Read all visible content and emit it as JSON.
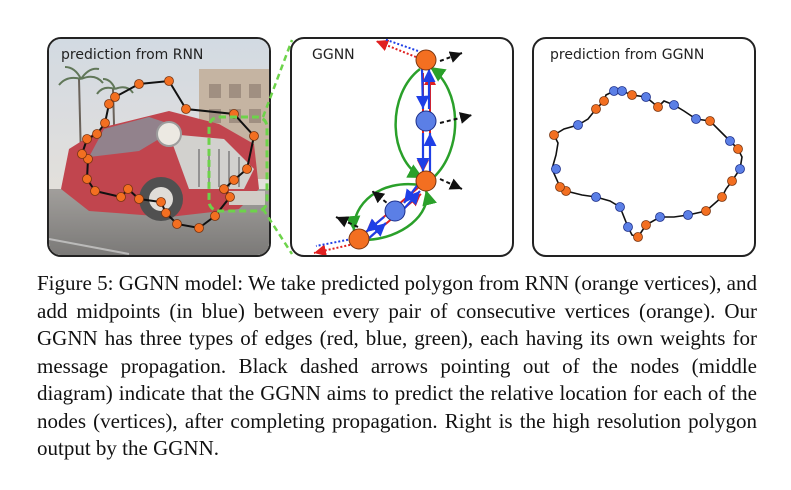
{
  "figure": {
    "panels": {
      "left_title": "prediction from RNN",
      "mid_title": "GGNN",
      "right_title": "prediction from GGNN"
    },
    "colors": {
      "vertex_orange": "#f36f21",
      "midpoint_blue": "#5b7fe6",
      "edge_red": "#e02020",
      "edge_blue": "#1f3fe6",
      "edge_green": "#2aa02a",
      "zoom_box": "#6dd34a"
    },
    "caption": "Figure 5: GGNN model: We take predicted polygon from RNN (orange vertices), and add midpoints (in blue) between every pair of consecutive vertices (orange). Our GGNN has three types of edges (red, blue, green), each having its own weights for message propagation. Black dashed arrows pointing out of the nodes (middle diagram) indicate that the GGNN aims to predict the relative location for each of the nodes (vertices), after completing propagation. Right is the high resolution polygon output by the GGNN."
  }
}
